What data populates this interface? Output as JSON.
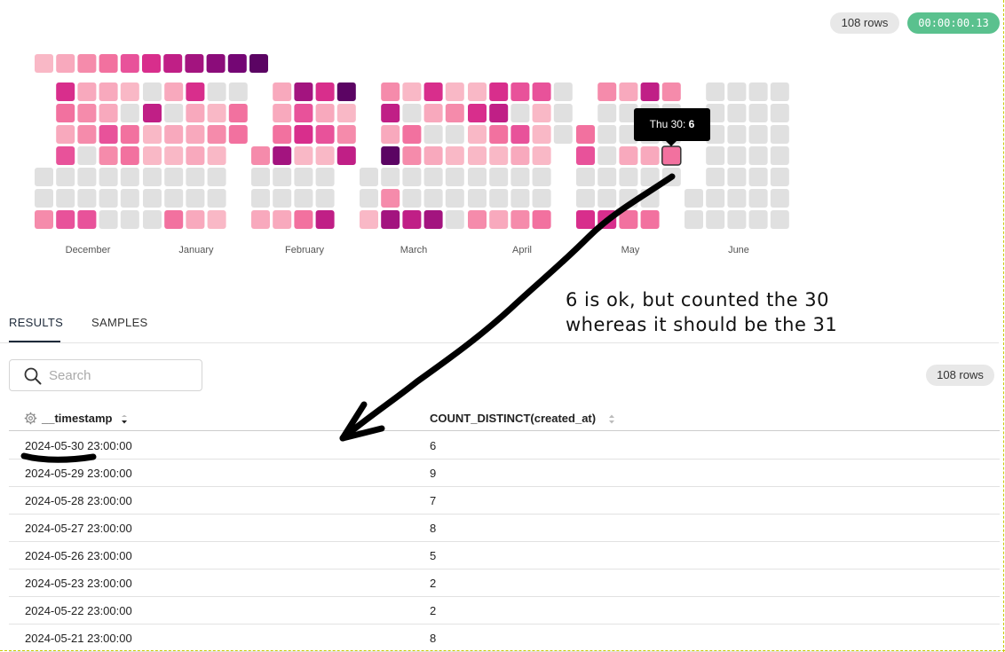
{
  "header": {
    "rows_badge": "108 rows",
    "timer": "00:00:00.13"
  },
  "calendar": {
    "months": [
      "December",
      "January",
      "February",
      "March",
      "April",
      "May",
      "June"
    ],
    "legend_levels": 11,
    "tooltip": {
      "day": "Thu 30:",
      "value": "6"
    }
  },
  "annotation": {
    "line1": "6 is ok, but counted the 30",
    "line2": "whereas it should be the 31"
  },
  "tabs": [
    {
      "label": "RESULTS",
      "active": true
    },
    {
      "label": "SAMPLES",
      "active": false
    }
  ],
  "search": {
    "placeholder": "Search",
    "value": ""
  },
  "results_rows_badge": "108 rows",
  "table": {
    "columns": [
      "__timestamp",
      "COUNT_DISTINCT(created_at)"
    ],
    "rows": [
      [
        "2024-05-30 23:00:00",
        "6"
      ],
      [
        "2024-05-29 23:00:00",
        "9"
      ],
      [
        "2024-05-28 23:00:00",
        "7"
      ],
      [
        "2024-05-27 23:00:00",
        "8"
      ],
      [
        "2024-05-26 23:00:00",
        "5"
      ],
      [
        "2024-05-23 23:00:00",
        "2"
      ],
      [
        "2024-05-22 23:00:00",
        "2"
      ],
      [
        "2024-05-21 23:00:00",
        "8"
      ]
    ]
  },
  "colors": {
    "empty": "#e0e0e0",
    "scale": [
      "#f9b8c6",
      "#f8a9bd",
      "#f58bab",
      "#f2719f",
      "#e8529a",
      "#d82e8c",
      "#c01f86",
      "#a3147f",
      "#8b0c7a",
      "#740674",
      "#5b0463"
    ],
    "highlight_border": "#333333"
  }
}
